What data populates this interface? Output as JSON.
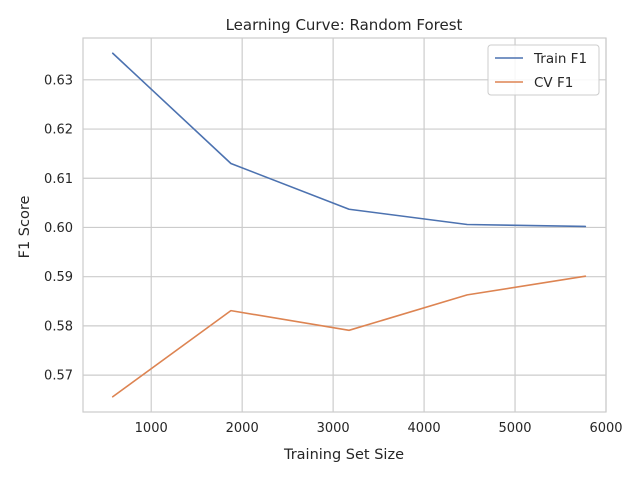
{
  "chart_data": {
    "type": "line",
    "title": "Learning Curve: Random Forest",
    "xlabel": "Training Set Size",
    "ylabel": "F1 Score",
    "xlim": [
      250,
      6000
    ],
    "ylim": [
      0.5625,
      0.6385
    ],
    "xticks": [
      1000,
      2000,
      3000,
      4000,
      5000,
      6000
    ],
    "xtick_labels": [
      "1000",
      "2000",
      "3000",
      "4000",
      "5000",
      "6000"
    ],
    "yticks": [
      0.57,
      0.58,
      0.59,
      0.6,
      0.61,
      0.62,
      0.63
    ],
    "ytick_labels": [
      "0.57",
      "0.58",
      "0.59",
      "0.60",
      "0.61",
      "0.62",
      "0.63"
    ],
    "grid": true,
    "legend_position": "top-right",
    "x": [
      577,
      1876,
      3175,
      4474,
      5773
    ],
    "series": [
      {
        "name": "Train F1",
        "color": "#4c72b0",
        "values": [
          0.6354,
          0.613,
          0.6037,
          0.6006,
          0.6002
        ]
      },
      {
        "name": "CV F1",
        "color": "#dd8452",
        "values": [
          0.5656,
          0.5831,
          0.5791,
          0.5863,
          0.5901
        ]
      }
    ]
  }
}
